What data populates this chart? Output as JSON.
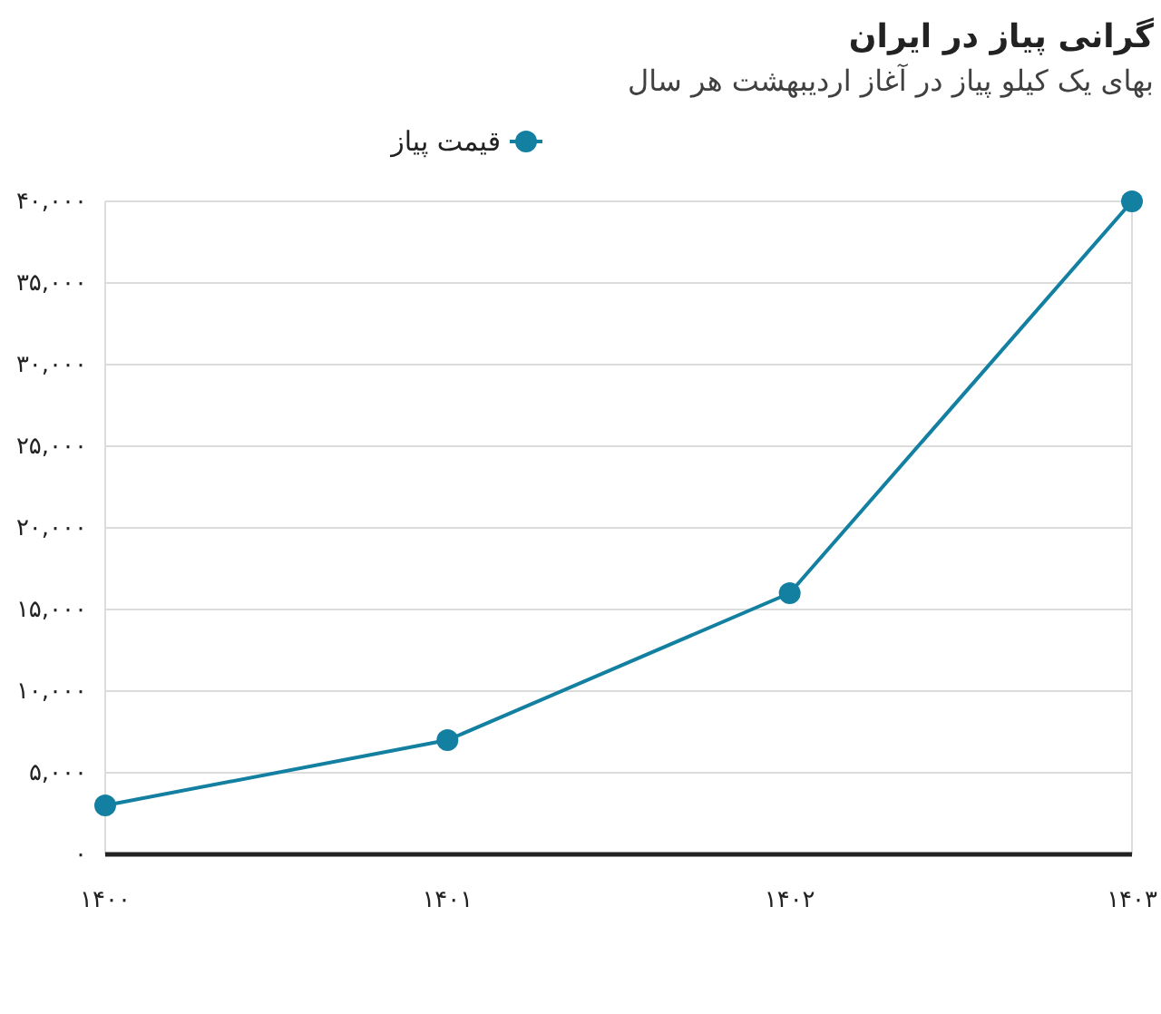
{
  "chart_data": {
    "type": "line",
    "title": "گرانی پیاز در ایران",
    "subtitle": "بهای یک کیلو پیاز در آغاز اردیبهشت هر سال",
    "categories": [
      "۱۴۰۰",
      "۱۴۰۱",
      "۱۴۰۲",
      "۱۴۰۳"
    ],
    "series": [
      {
        "name": "قیمت پیاز",
        "color": "#1380a1",
        "values": [
          3000,
          7000,
          16000,
          40000
        ]
      }
    ],
    "ylim": [
      0,
      40000
    ],
    "yticks": [
      {
        "value": 0,
        "label": "۰"
      },
      {
        "value": 5000,
        "label": "۵,۰۰۰"
      },
      {
        "value": 10000,
        "label": "۱۰,۰۰۰"
      },
      {
        "value": 15000,
        "label": "۱۵,۰۰۰"
      },
      {
        "value": 20000,
        "label": "۲۰,۰۰۰"
      },
      {
        "value": 25000,
        "label": "۲۵,۰۰۰"
      },
      {
        "value": 30000,
        "label": "۳۰,۰۰۰"
      },
      {
        "value": 35000,
        "label": "۳۵,۰۰۰"
      },
      {
        "value": 40000,
        "label": "۴۰,۰۰۰"
      }
    ],
    "grid": "y",
    "legend": "top",
    "marker": "circle",
    "line_style": "solid"
  }
}
